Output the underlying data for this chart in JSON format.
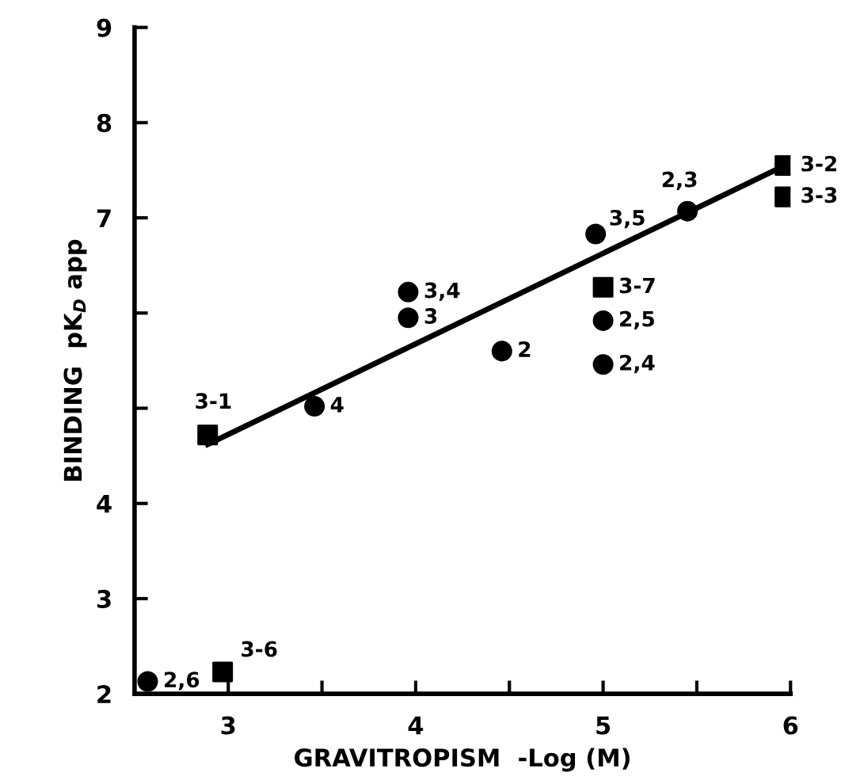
{
  "chart_data": {
    "type": "scatter",
    "xlabel": "GRAVITROPISM  -Log (M)",
    "ylabel": "BINDING  pK$_{D}$ app",
    "xlim": [
      2.5,
      6
    ],
    "ylim": [
      2,
      9
    ],
    "xticks": [
      3,
      {
        "value": 3.5,
        "label": null
      },
      4,
      {
        "value": 4.5,
        "label": null
      },
      5,
      {
        "value": 5.5,
        "label": null
      },
      6
    ],
    "yticks": [
      2,
      3,
      4,
      {
        "value": 5,
        "label": null
      },
      {
        "value": 6,
        "label": null
      },
      7,
      8,
      9
    ],
    "grid": false,
    "legend": false,
    "series": [
      {
        "marker": "circle",
        "color": "#000000",
        "x": [
          2.57,
          3.46,
          3.96,
          3.96,
          4.46,
          4.96,
          5.0,
          5.0,
          5.45
        ],
        "values": [
          2.13,
          5.02,
          6.22,
          5.95,
          5.6,
          6.83,
          5.92,
          5.46,
          7.07
        ]
      },
      {
        "marker": "square",
        "color": "#000000",
        "x": [
          2.97,
          2.89,
          5.0,
          5.97,
          5.97
        ],
        "values": [
          2.23,
          4.72,
          6.27,
          7.55,
          7.22
        ]
      },
      {
        "type": "line",
        "marker": "none",
        "line_style": "solid",
        "color": "#000000",
        "x": [
          2.89,
          5.97
        ],
        "values": [
          4.62,
          7.55
        ]
      }
    ],
    "annotations": [
      {
        "text": "2,6",
        "x": 2.57,
        "y": 2.13
      },
      {
        "text": "4",
        "x": 3.46,
        "y": 5.02
      },
      {
        "text": "3,4",
        "x": 3.96,
        "y": 6.22
      },
      {
        "text": "3",
        "x": 3.96,
        "y": 5.95
      },
      {
        "text": "2",
        "x": 4.46,
        "y": 5.6
      },
      {
        "text": "3,5",
        "x": 4.96,
        "y": 6.83
      },
      {
        "text": "2,5",
        "x": 5.0,
        "y": 5.92
      },
      {
        "text": "2,4",
        "x": 5.0,
        "y": 5.46
      },
      {
        "text": "2,3",
        "x": 5.45,
        "y": 7.07
      },
      {
        "text": "3-6",
        "x": 2.97,
        "y": 2.23
      },
      {
        "text": "3-1",
        "x": 2.89,
        "y": 4.72
      },
      {
        "text": "3-7",
        "x": 5.0,
        "y": 6.27
      },
      {
        "text": "3-2",
        "x": 5.97,
        "y": 7.55
      },
      {
        "text": "3-3",
        "x": 5.97,
        "y": 7.22
      }
    ]
  }
}
